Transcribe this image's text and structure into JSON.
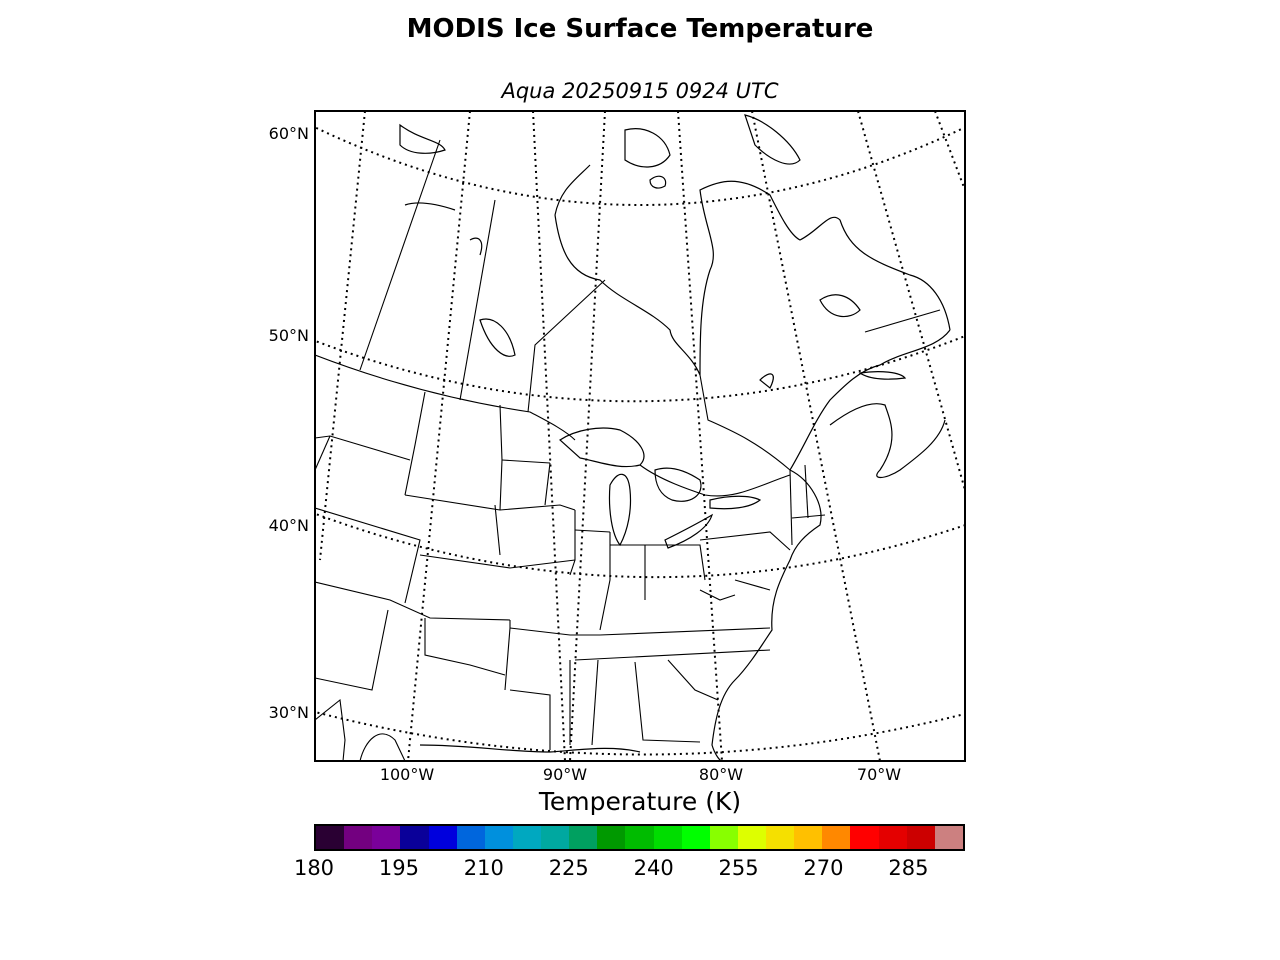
{
  "title": "MODIS Ice Surface Temperature",
  "subtitle": "Aqua 20250915 0924 UTC",
  "map": {
    "lat_labels": [
      "60°N",
      "50°N",
      "40°N",
      "30°N"
    ],
    "lon_labels": [
      "100°W",
      "90°W",
      "80°W",
      "70°W"
    ],
    "frame_color": "#000000",
    "graticule_style": "dotted"
  },
  "colorbar": {
    "label": "Temperature (K)",
    "ticks": [
      "180",
      "195",
      "210",
      "225",
      "240",
      "255",
      "270",
      "285"
    ],
    "range": [
      180,
      295
    ],
    "step": 5,
    "colors": [
      "#2a0033",
      "#730080",
      "#7a009a",
      "#0a0099",
      "#0000dd",
      "#0066dd",
      "#0090dd",
      "#00a8c0",
      "#00a8a0",
      "#00a060",
      "#009900",
      "#00bb00",
      "#00dd00",
      "#00ff00",
      "#88ff00",
      "#ddff00",
      "#f5e000",
      "#ffc000",
      "#ff8800",
      "#ff0000",
      "#e40000",
      "#cc0000",
      "#cc8080"
    ]
  }
}
